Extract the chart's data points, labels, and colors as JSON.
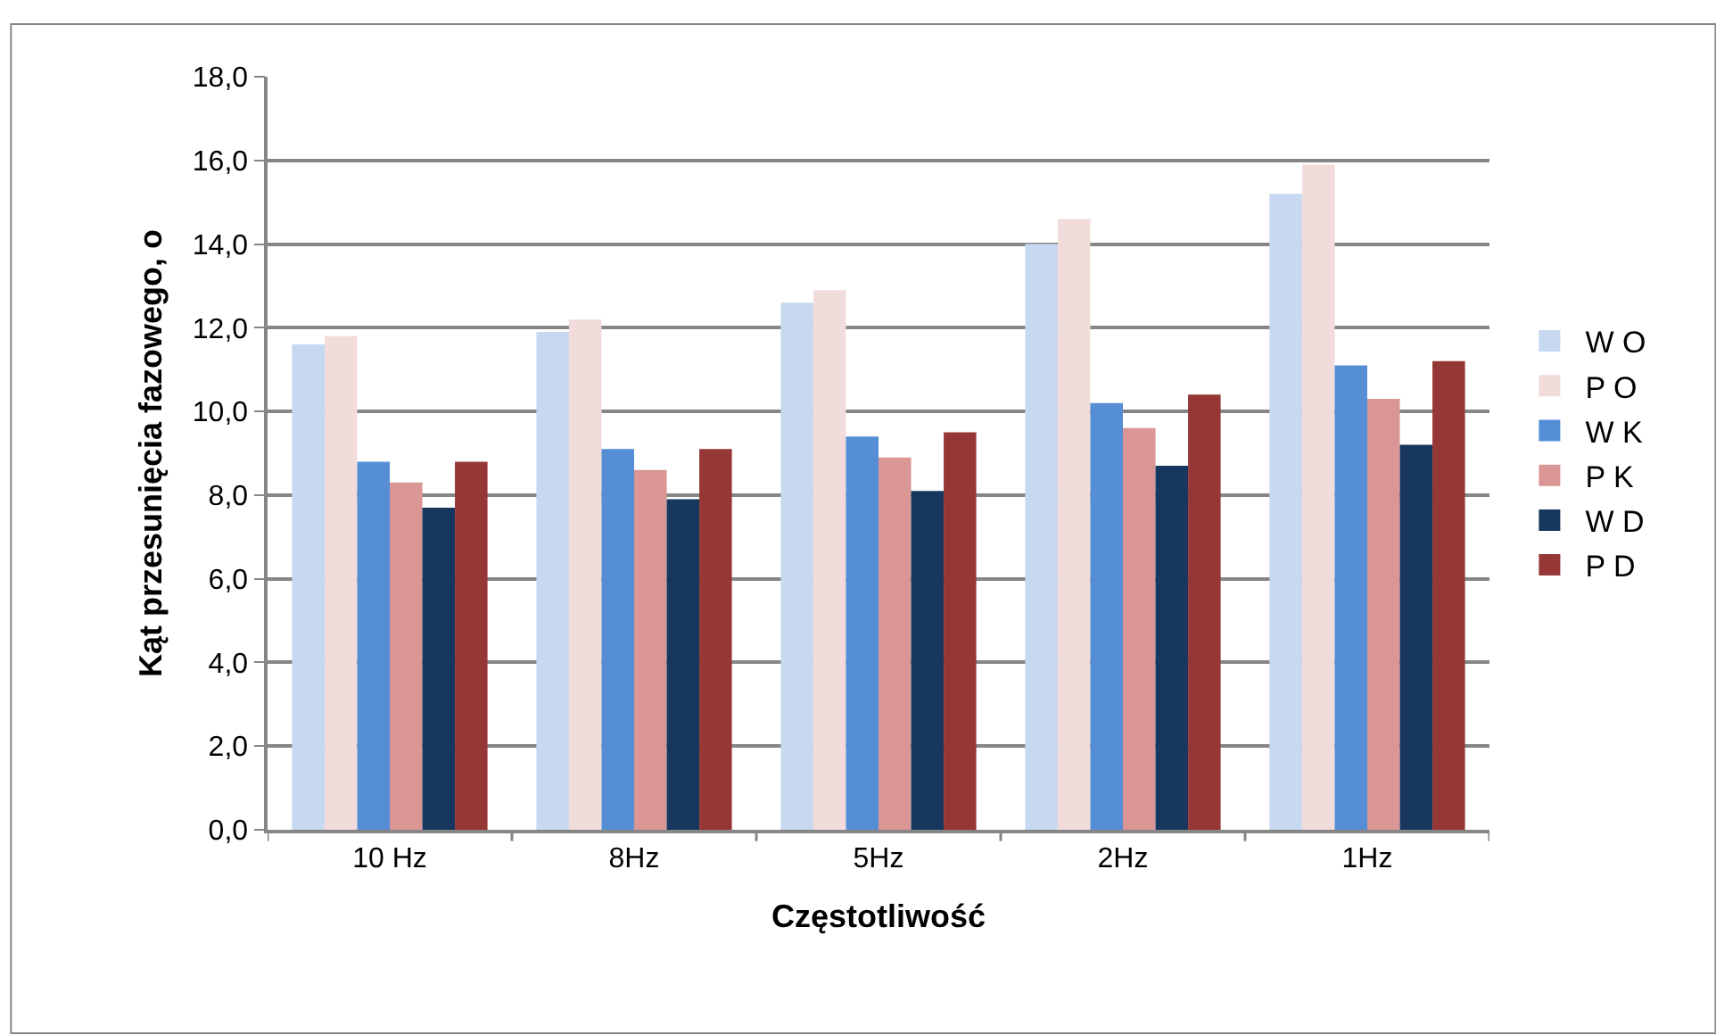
{
  "chart_data": {
    "type": "bar",
    "xlabel": "Częstotliwość",
    "ylabel": "Kąt przesunięcia fazowego, o",
    "categories": [
      "10 Hz",
      "8Hz",
      "5Hz",
      "2Hz",
      "1Hz"
    ],
    "series": [
      {
        "name": "W O",
        "color": "#c6d9f0",
        "values": [
          11.6,
          11.9,
          12.6,
          14.0,
          15.2
        ]
      },
      {
        "name": "P O",
        "color": "#f2dcdb",
        "values": [
          11.8,
          12.2,
          12.9,
          14.6,
          15.9
        ]
      },
      {
        "name": "W K",
        "color": "#558ed5",
        "values": [
          8.8,
          9.1,
          9.4,
          10.2,
          11.1
        ]
      },
      {
        "name": "P K",
        "color": "#d99694",
        "values": [
          8.3,
          8.6,
          8.9,
          9.6,
          10.3
        ]
      },
      {
        "name": "W D",
        "color": "#17375e",
        "values": [
          7.7,
          7.9,
          8.1,
          8.7,
          9.2
        ]
      },
      {
        "name": "P D",
        "color": "#953735",
        "values": [
          8.8,
          9.1,
          9.5,
          10.4,
          11.2
        ]
      }
    ],
    "ylim": [
      0,
      18
    ],
    "yticks": [
      {
        "value": 0,
        "label": "0,0"
      },
      {
        "value": 2,
        "label": "2,0"
      },
      {
        "value": 4,
        "label": "4,0"
      },
      {
        "value": 6,
        "label": "6,0"
      },
      {
        "value": 8,
        "label": "8,0"
      },
      {
        "value": 10,
        "label": "10,0"
      },
      {
        "value": 12,
        "label": "12,0"
      },
      {
        "value": 14,
        "label": "14,0"
      },
      {
        "value": 16,
        "label": "16,0"
      },
      {
        "value": 18,
        "label": "18,0"
      }
    ],
    "grid": "y",
    "legend": "right"
  }
}
